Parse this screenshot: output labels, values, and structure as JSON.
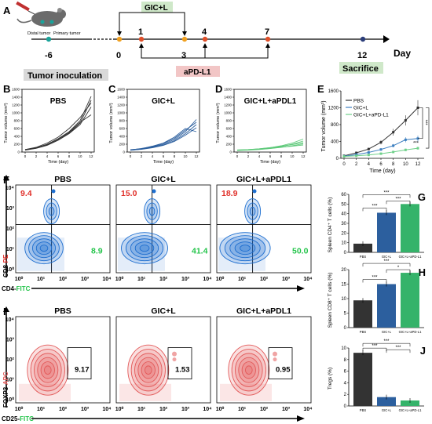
{
  "colors": {
    "pbs": "#333333",
    "gicl": "#2c5f9e",
    "apd": "#35b36a",
    "contour_blue": "#1e6fd0",
    "contour_red": "#e35a5a",
    "gic_box": "#cfe8c9",
    "apd_box": "#f2c6c6",
    "sac_box": "#cfe8c9",
    "inoc_box": "#d9d9d9",
    "timeline_dot_orange": "#f0a020",
    "timeline_dot_red": "#e0502a",
    "timeline_dot_teal": "#1aa39a",
    "timeline_dot_navy": "#2c3e7a",
    "fitc": "#23c44a",
    "pe": "#e0302a"
  },
  "panelA": {
    "label": "A",
    "mouse_label1": "Distal tumor",
    "mouse_label2": "Primary tumor",
    "gic_label": "GIC+L",
    "apd_label": "aPD-L1",
    "inoc_label": "Tumor inoculation",
    "sac_label": "Sacrifice",
    "day_label": "Day",
    "ticks": [
      "-6",
      "0",
      "1",
      "3",
      "4",
      "7",
      "12"
    ]
  },
  "tumor_curves": {
    "panels": [
      {
        "letter": "B",
        "title": "PBS"
      },
      {
        "letter": "C",
        "title": "GIC+L"
      },
      {
        "letter": "D",
        "title": "GIC+L+aPDL1"
      }
    ],
    "ylabel": "Tumor volume (mm³)",
    "xlabel": "Time (day)",
    "yticks": [
      "0",
      "200",
      "400",
      "600",
      "800",
      "1000",
      "1200",
      "1400",
      "1600"
    ],
    "xticks": [
      "0",
      "2",
      "4",
      "6",
      "8",
      "10",
      "12"
    ]
  },
  "panelE": {
    "letter": "E",
    "ylabel": "Tumor volume (mm³)",
    "xlabel": "Time (day)",
    "yticks": [
      "0",
      "400",
      "800",
      "1200",
      "1600"
    ],
    "xticks": [
      "0",
      "2",
      "4",
      "6",
      "8",
      "10",
      "12"
    ],
    "legend": [
      "PBS",
      "GIC+L",
      "GIC+L+aPD-L1"
    ],
    "stars": [
      "***",
      "***",
      "***"
    ]
  },
  "chart_data": [
    {
      "type": "line",
      "title": "PBS",
      "xlabel": "Time (day)",
      "ylabel": "Tumor volume (mm³)",
      "ylim": [
        0,
        1600
      ],
      "x": [
        0,
        2,
        4,
        6,
        8,
        10,
        12
      ],
      "series": [
        {
          "values": [
            60,
            110,
            200,
            340,
            520,
            800,
            1420
          ]
        },
        {
          "values": [
            55,
            100,
            180,
            310,
            480,
            740,
            1320
          ]
        },
        {
          "values": [
            65,
            120,
            230,
            380,
            600,
            880,
            1250
          ]
        },
        {
          "values": [
            50,
            95,
            170,
            300,
            470,
            700,
            1150
          ]
        },
        {
          "values": [
            60,
            105,
            190,
            330,
            500,
            760,
            950
          ]
        }
      ]
    },
    {
      "type": "line",
      "title": "GIC+L",
      "xlabel": "Time (day)",
      "ylabel": "Tumor volume (mm³)",
      "ylim": [
        0,
        1600
      ],
      "x": [
        0,
        2,
        4,
        6,
        8,
        10,
        12
      ],
      "series": [
        {
          "values": [
            50,
            80,
            130,
            200,
            320,
            520,
            830
          ]
        },
        {
          "values": [
            55,
            90,
            140,
            220,
            350,
            560,
            760
          ]
        },
        {
          "values": [
            45,
            75,
            120,
            180,
            290,
            470,
            700
          ]
        },
        {
          "values": [
            50,
            70,
            110,
            170,
            270,
            430,
            620
          ]
        },
        {
          "values": [
            60,
            85,
            150,
            230,
            380,
            600,
            520
          ]
        }
      ]
    },
    {
      "type": "line",
      "title": "GIC+L+aPDL1",
      "xlabel": "Time (day)",
      "ylabel": "Tumor volume (mm³)",
      "ylim": [
        0,
        1600
      ],
      "x": [
        0,
        2,
        4,
        6,
        8,
        10,
        12
      ],
      "series": [
        {
          "values": [
            50,
            60,
            80,
            110,
            160,
            230,
            330
          ]
        },
        {
          "values": [
            45,
            55,
            75,
            100,
            140,
            200,
            280
          ]
        },
        {
          "values": [
            55,
            65,
            85,
            115,
            150,
            190,
            240
          ]
        },
        {
          "values": [
            40,
            50,
            65,
            90,
            120,
            160,
            210
          ]
        },
        {
          "values": [
            50,
            58,
            70,
            95,
            125,
            150,
            180
          ]
        }
      ]
    },
    {
      "type": "line",
      "xlabel": "Time (day)",
      "ylabel": "Tumor volume (mm³)",
      "ylim": [
        0,
        1600
      ],
      "x": [
        0,
        2,
        4,
        6,
        8,
        10,
        12
      ],
      "series": [
        {
          "name": "PBS",
          "values": [
            60,
            130,
            220,
            380,
            620,
            900,
            1200
          ],
          "err": [
            10,
            20,
            30,
            50,
            80,
            120,
            180
          ]
        },
        {
          "name": "GIC+L",
          "values": [
            50,
            90,
            140,
            210,
            300,
            440,
            470
          ],
          "err": [
            8,
            12,
            20,
            30,
            40,
            60,
            70
          ]
        },
        {
          "name": "GIC+L+aPD-L1",
          "values": [
            45,
            60,
            80,
            110,
            150,
            200,
            240
          ],
          "err": [
            6,
            8,
            10,
            15,
            20,
            30,
            35
          ]
        }
      ]
    },
    {
      "type": "bar",
      "ylabel": "Spleen CD4⁺ T cells (%)",
      "categories": [
        "PBS",
        "GIC+L",
        "GIC+L+aPD-L1"
      ],
      "values": [
        9,
        41,
        50
      ],
      "ylim": [
        0,
        60
      ]
    },
    {
      "type": "bar",
      "ylabel": "Spleen CD8⁺ T cells (%)",
      "categories": [
        "PBS",
        "GIC+L",
        "GIC+L+aPD-L1"
      ],
      "values": [
        9.4,
        15.0,
        18.9
      ],
      "ylim": [
        0,
        20
      ]
    },
    {
      "type": "bar",
      "ylabel": "Tregs (%)",
      "categories": [
        "PBS",
        "GIC+L",
        "GIC+L+aPD-L1"
      ],
      "values": [
        9.17,
        1.53,
        0.95
      ],
      "ylim": [
        0,
        10
      ]
    }
  ],
  "flowF": {
    "letter": "F",
    "titles": [
      "PBS",
      "GIC+L",
      "GIC+L+aPDL1"
    ],
    "cd8": [
      "9.4",
      "15.0",
      "18.9"
    ],
    "cd4": [
      "8.9",
      "41.4",
      "50.0"
    ],
    "ylabel_a": "CD8-",
    "ylabel_b": "PE",
    "xlabel_a": "CD4-",
    "xlabel_b": "FITC",
    "ticks": [
      "10⁰",
      "10¹",
      "10²",
      "10³",
      "10⁴"
    ]
  },
  "flowI": {
    "letter": "I",
    "titles": [
      "PBS",
      "GIC+L",
      "GIC+L+aPDL1"
    ],
    "values": [
      "9.17",
      "1.53",
      "0.95"
    ],
    "ylabel_a": "FOXP3-",
    "ylabel_b": "APC",
    "xlabel_a": "CD25-",
    "xlabel_b": "FITC",
    "ticks": [
      "10⁰",
      "10¹",
      "10²",
      "10³",
      "10⁴"
    ]
  },
  "bars": {
    "G": {
      "letter": "G",
      "ylabel": "Spleen CD4⁺ T cells (%)",
      "yticks": [
        "0",
        "10",
        "20",
        "30",
        "40",
        "50",
        "60"
      ],
      "cats": [
        "PBS",
        "GIC+L",
        "GIC+L+aPD-L1"
      ],
      "stars": [
        "***",
        "***",
        "***"
      ]
    },
    "H": {
      "letter": "H",
      "ylabel": "Spleen CD8⁺ T cells (%)",
      "yticks": [
        "0",
        "5",
        "10",
        "15",
        "20"
      ],
      "cats": [
        "PBS",
        "GIC+L",
        "GIC+L+aPD-L1"
      ],
      "stars": [
        "***",
        "***",
        "*"
      ]
    },
    "J": {
      "letter": "J",
      "ylabel": "Tregs (%)",
      "yticks": [
        "0",
        "2",
        "4",
        "6",
        "8",
        "10"
      ],
      "cats": [
        "PBS",
        "GIC+L",
        "GIC+L+aPD-L1"
      ],
      "stars": [
        "***",
        "***",
        "***"
      ]
    }
  }
}
